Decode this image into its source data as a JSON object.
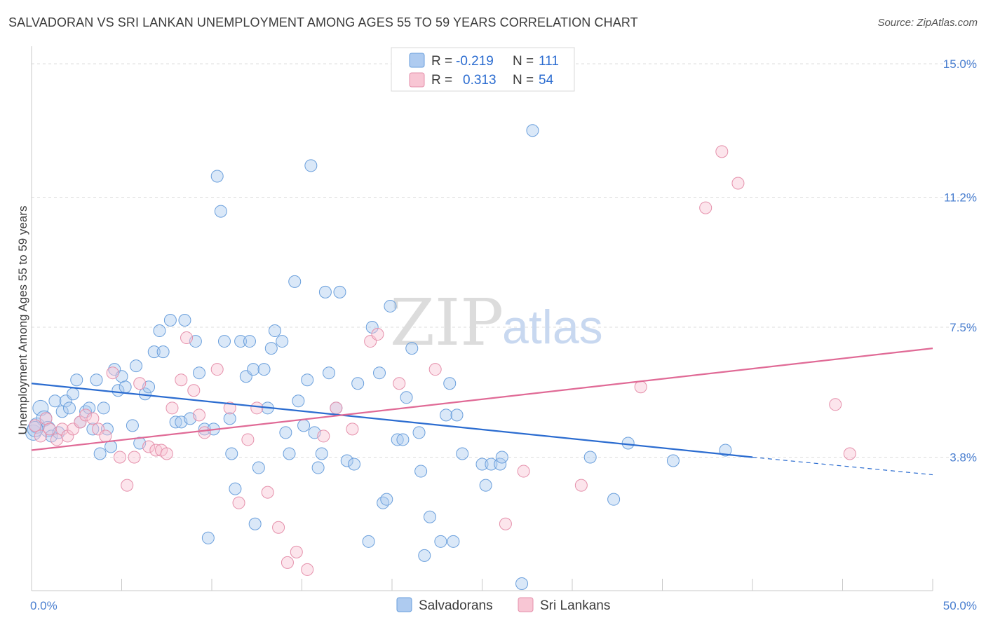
{
  "header": {
    "title": "SALVADORAN VS SRI LANKAN UNEMPLOYMENT AMONG AGES 55 TO 59 YEARS CORRELATION CHART",
    "source": "Source: ZipAtlas.com"
  },
  "watermark": {
    "zip": "ZIP",
    "atlas": "atlas"
  },
  "legend": {
    "rows": [
      {
        "r_label": "R =",
        "r_value": "-0.219",
        "n_label": "N =",
        "n_value": "111",
        "color": "#aecbf0",
        "stroke": "#6a9fdc"
      },
      {
        "r_label": "R =",
        "r_value": "0.313",
        "n_label": "N =",
        "n_value": "54",
        "color": "#f8c6d4",
        "stroke": "#e590ab"
      }
    ]
  },
  "bottom_legend": [
    {
      "label": "Salvadorans",
      "color": "#aecbf0",
      "stroke": "#6a9fdc"
    },
    {
      "label": "Sri Lankans",
      "color": "#f8c6d4",
      "stroke": "#e590ab"
    }
  ],
  "chart_data": {
    "type": "scatter",
    "title": "SALVADORAN VS SRI LANKAN UNEMPLOYMENT AMONG AGES 55 TO 59 YEARS CORRELATION CHART",
    "xlabel": "",
    "ylabel": "Unemployment Among Ages 55 to 59 years",
    "xlim": [
      0,
      50
    ],
    "ylim": [
      0,
      15.3
    ],
    "x_tick_labels": [
      "0.0%",
      "50.0%"
    ],
    "y_ticks": [
      3.8,
      7.5,
      11.2,
      15.0
    ],
    "y_tick_labels": [
      "3.8%",
      "7.5%",
      "11.2%",
      "15.0%"
    ],
    "grid": true,
    "colors": {
      "salvadorans_line": "#2b6cd0",
      "srilankans_line": "#e06a96"
    },
    "series": [
      {
        "name": "Salvadorans",
        "trend": {
          "x0": 0,
          "y0": 5.9,
          "x1": 40,
          "y1": 3.8,
          "dash_to_x": 50,
          "dash_to_y": 3.3
        },
        "points": [
          [
            0.1,
            4.5
          ],
          [
            0.3,
            4.7
          ],
          [
            0.5,
            5.2
          ],
          [
            0.7,
            4.9
          ],
          [
            0.9,
            4.6
          ],
          [
            1.1,
            4.4
          ],
          [
            1.3,
            5.4
          ],
          [
            1.5,
            4.5
          ],
          [
            1.7,
            5.1
          ],
          [
            1.9,
            5.4
          ],
          [
            2.1,
            5.2
          ],
          [
            2.3,
            5.6
          ],
          [
            2.5,
            6.0
          ],
          [
            2.7,
            4.8
          ],
          [
            3.0,
            5.1
          ],
          [
            3.2,
            5.2
          ],
          [
            3.4,
            4.6
          ],
          [
            3.6,
            6.0
          ],
          [
            3.8,
            3.9
          ],
          [
            4.0,
            5.2
          ],
          [
            4.2,
            4.6
          ],
          [
            4.4,
            4.1
          ],
          [
            4.6,
            6.3
          ],
          [
            4.8,
            5.7
          ],
          [
            5.0,
            6.1
          ],
          [
            5.2,
            5.8
          ],
          [
            5.6,
            4.7
          ],
          [
            5.8,
            6.4
          ],
          [
            6.0,
            4.2
          ],
          [
            6.3,
            5.6
          ],
          [
            6.5,
            5.8
          ],
          [
            6.8,
            6.8
          ],
          [
            7.1,
            7.4
          ],
          [
            7.3,
            6.8
          ],
          [
            7.7,
            7.7
          ],
          [
            8.0,
            4.8
          ],
          [
            8.3,
            4.8
          ],
          [
            8.5,
            7.7
          ],
          [
            8.8,
            4.9
          ],
          [
            9.1,
            7.1
          ],
          [
            9.3,
            6.2
          ],
          [
            9.6,
            4.6
          ],
          [
            9.8,
            1.5
          ],
          [
            10.1,
            4.6
          ],
          [
            10.3,
            11.8
          ],
          [
            10.5,
            10.8
          ],
          [
            10.7,
            7.1
          ],
          [
            11.0,
            4.9
          ],
          [
            11.1,
            3.9
          ],
          [
            11.3,
            2.9
          ],
          [
            11.6,
            7.1
          ],
          [
            11.9,
            6.1
          ],
          [
            12.1,
            7.1
          ],
          [
            12.3,
            6.3
          ],
          [
            12.4,
            1.9
          ],
          [
            12.6,
            3.5
          ],
          [
            12.9,
            6.3
          ],
          [
            13.1,
            5.2
          ],
          [
            13.3,
            6.9
          ],
          [
            13.5,
            7.4
          ],
          [
            13.9,
            7.1
          ],
          [
            14.1,
            4.5
          ],
          [
            14.3,
            3.9
          ],
          [
            14.6,
            8.8
          ],
          [
            14.8,
            5.4
          ],
          [
            15.1,
            4.7
          ],
          [
            15.3,
            6.0
          ],
          [
            15.5,
            12.1
          ],
          [
            15.7,
            4.5
          ],
          [
            15.9,
            3.5
          ],
          [
            16.1,
            3.9
          ],
          [
            16.3,
            8.5
          ],
          [
            16.5,
            6.2
          ],
          [
            16.9,
            5.2
          ],
          [
            17.1,
            8.5
          ],
          [
            17.5,
            3.7
          ],
          [
            17.9,
            3.6
          ],
          [
            18.1,
            5.9
          ],
          [
            18.7,
            1.4
          ],
          [
            18.9,
            7.5
          ],
          [
            19.3,
            6.2
          ],
          [
            19.5,
            2.5
          ],
          [
            19.7,
            2.6
          ],
          [
            19.9,
            8.1
          ],
          [
            20.3,
            4.3
          ],
          [
            20.6,
            4.3
          ],
          [
            20.8,
            5.5
          ],
          [
            21.1,
            6.9
          ],
          [
            21.5,
            4.5
          ],
          [
            21.6,
            3.4
          ],
          [
            21.8,
            1.0
          ],
          [
            22.1,
            2.1
          ],
          [
            22.7,
            1.4
          ],
          [
            23.0,
            5.0
          ],
          [
            23.2,
            5.9
          ],
          [
            23.4,
            1.4
          ],
          [
            23.6,
            5.0
          ],
          [
            23.9,
            3.9
          ],
          [
            25.0,
            3.6
          ],
          [
            25.2,
            3.0
          ],
          [
            25.5,
            3.6
          ],
          [
            26.0,
            3.6
          ],
          [
            26.1,
            3.8
          ],
          [
            27.8,
            13.1
          ],
          [
            31.0,
            3.8
          ],
          [
            32.3,
            2.6
          ],
          [
            33.1,
            4.2
          ],
          [
            35.6,
            3.7
          ],
          [
            38.5,
            4.0
          ],
          [
            27.2,
            0.2
          ],
          [
            0.2,
            4.6
          ]
        ]
      },
      {
        "name": "Sri Lankans",
        "trend": {
          "x0": 0,
          "y0": 4.0,
          "x1": 50,
          "y1": 6.9
        },
        "points": [
          [
            0.2,
            4.7
          ],
          [
            0.5,
            4.4
          ],
          [
            0.8,
            4.9
          ],
          [
            1.0,
            4.6
          ],
          [
            1.4,
            4.3
          ],
          [
            1.7,
            4.6
          ],
          [
            2.0,
            4.4
          ],
          [
            2.3,
            4.6
          ],
          [
            2.7,
            4.8
          ],
          [
            3.0,
            5.0
          ],
          [
            3.4,
            4.9
          ],
          [
            3.7,
            4.6
          ],
          [
            4.1,
            4.4
          ],
          [
            4.5,
            6.2
          ],
          [
            4.9,
            3.8
          ],
          [
            5.3,
            3.0
          ],
          [
            5.7,
            3.8
          ],
          [
            6.0,
            5.9
          ],
          [
            6.5,
            4.1
          ],
          [
            6.9,
            4.0
          ],
          [
            7.2,
            4.0
          ],
          [
            7.5,
            3.9
          ],
          [
            7.8,
            5.2
          ],
          [
            8.3,
            6.0
          ],
          [
            8.6,
            7.2
          ],
          [
            9.0,
            5.7
          ],
          [
            9.3,
            5.0
          ],
          [
            9.6,
            4.5
          ],
          [
            10.3,
            6.3
          ],
          [
            11.0,
            5.2
          ],
          [
            11.5,
            2.5
          ],
          [
            12.0,
            4.3
          ],
          [
            12.5,
            5.2
          ],
          [
            13.1,
            2.8
          ],
          [
            13.7,
            1.8
          ],
          [
            14.2,
            0.8
          ],
          [
            14.7,
            1.1
          ],
          [
            15.3,
            0.6
          ],
          [
            16.2,
            4.4
          ],
          [
            16.9,
            5.2
          ],
          [
            17.8,
            4.6
          ],
          [
            18.8,
            7.1
          ],
          [
            19.2,
            7.3
          ],
          [
            20.4,
            5.9
          ],
          [
            22.4,
            6.3
          ],
          [
            26.3,
            1.9
          ],
          [
            27.3,
            3.4
          ],
          [
            30.5,
            3.0
          ],
          [
            33.8,
            5.8
          ],
          [
            37.4,
            10.9
          ],
          [
            38.3,
            12.5
          ],
          [
            39.2,
            11.6
          ],
          [
            44.6,
            5.3
          ],
          [
            45.4,
            3.9
          ]
        ]
      }
    ]
  }
}
